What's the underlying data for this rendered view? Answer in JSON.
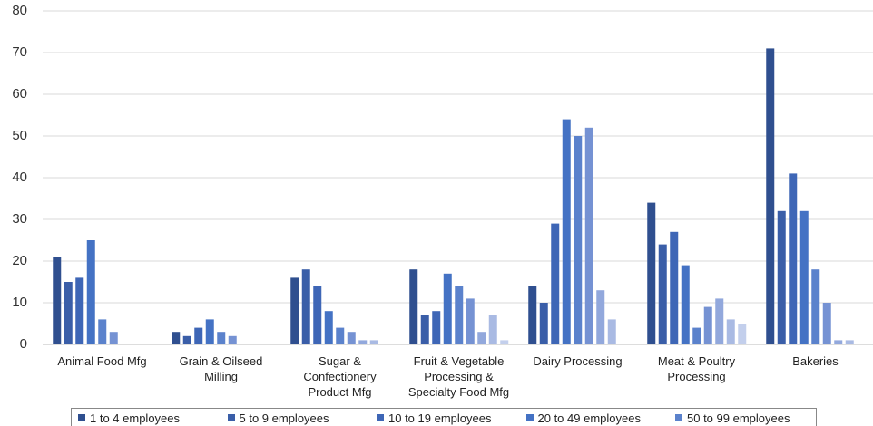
{
  "chart_data": {
    "type": "bar",
    "categories": [
      "Animal Food Mfg",
      "Grain & Oilseed Milling",
      "Sugar & Confectionery Product Mfg",
      "Fruit & Vegetable Processing & Specialty Food Mfg",
      "Dairy Processing",
      "Meat & Poultry Processing",
      "Bakeries"
    ],
    "series": [
      {
        "name": "1 to 4 employees",
        "color": "#2f4f8f",
        "values": [
          21,
          3,
          16,
          18,
          14,
          34,
          71
        ]
      },
      {
        "name": "5 to 9 employees",
        "color": "#3a5ea8",
        "values": [
          15,
          2,
          18,
          7,
          10,
          24,
          32
        ]
      },
      {
        "name": "10 to 19 employees",
        "color": "#3e66b6",
        "values": [
          16,
          4,
          14,
          8,
          29,
          27,
          41
        ]
      },
      {
        "name": "20 to 49 employees",
        "color": "#4472c4",
        "values": [
          25,
          6,
          8,
          17,
          54,
          19,
          32
        ]
      },
      {
        "name": "50 to 99 employees",
        "color": "#5b82cc",
        "values": [
          6,
          3,
          4,
          14,
          50,
          4,
          18
        ]
      },
      {
        "color": "#7592d3",
        "values": [
          3,
          2,
          3,
          11,
          52,
          9,
          10
        ]
      },
      {
        "color": "#92a8dc",
        "values": [
          0,
          0,
          1,
          3,
          13,
          11,
          1
        ]
      },
      {
        "color": "#a9bae3",
        "values": [
          0,
          0,
          1,
          7,
          6,
          6,
          1
        ]
      },
      {
        "color": "#c3cfec",
        "values": [
          0,
          0,
          0,
          1,
          0,
          5,
          0
        ]
      }
    ],
    "ylim": [
      0,
      80
    ],
    "yticks": [
      0,
      10,
      20,
      30,
      40,
      50,
      60,
      70,
      80
    ],
    "grid": true
  }
}
